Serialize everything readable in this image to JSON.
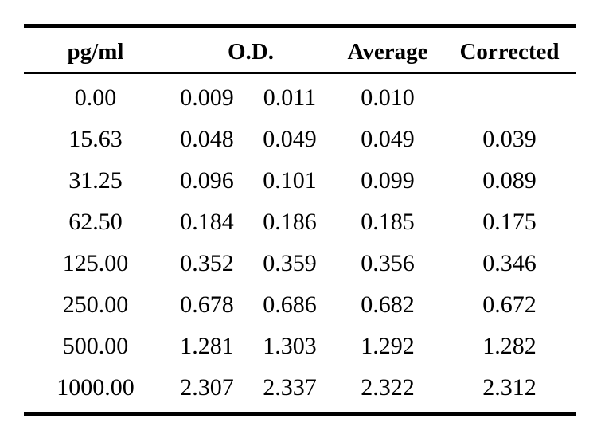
{
  "table": {
    "headers": {
      "pg_ml": "pg/ml",
      "od": "O.D.",
      "average": "Average",
      "corrected": "Corrected"
    },
    "rows": [
      {
        "pg_ml": "0.00",
        "od1": "0.009",
        "od2": "0.011",
        "average": "0.010",
        "corrected": ""
      },
      {
        "pg_ml": "15.63",
        "od1": "0.048",
        "od2": "0.049",
        "average": "0.049",
        "corrected": "0.039"
      },
      {
        "pg_ml": "31.25",
        "od1": "0.096",
        "od2": "0.101",
        "average": "0.099",
        "corrected": "0.089"
      },
      {
        "pg_ml": "62.50",
        "od1": "0.184",
        "od2": "0.186",
        "average": "0.185",
        "corrected": "0.175"
      },
      {
        "pg_ml": "125.00",
        "od1": "0.352",
        "od2": "0.359",
        "average": "0.356",
        "corrected": "0.346"
      },
      {
        "pg_ml": "250.00",
        "od1": "0.678",
        "od2": "0.686",
        "average": "0.682",
        "corrected": "0.672"
      },
      {
        "pg_ml": "500.00",
        "od1": "1.281",
        "od2": "1.303",
        "average": "1.292",
        "corrected": "1.282"
      },
      {
        "pg_ml": "1000.00",
        "od1": "2.307",
        "od2": "2.337",
        "average": "2.322",
        "corrected": "2.312"
      }
    ]
  }
}
